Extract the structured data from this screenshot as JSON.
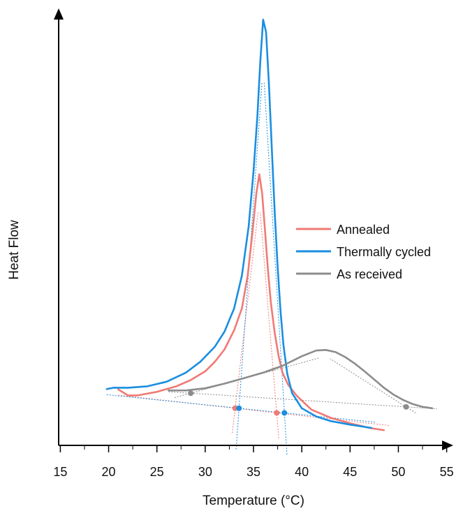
{
  "chart_data": {
    "type": "line",
    "xlabel": "Temperature (°C)",
    "ylabel": "Heat Flow",
    "xlim": [
      15,
      55
    ],
    "x_ticks": [
      15,
      20,
      25,
      30,
      35,
      40,
      45,
      50,
      55
    ],
    "y_units": "arbitrary heat flow (no tick labels shown)",
    "grid": false,
    "legend_position": "right-center",
    "series": [
      {
        "name": "Annealed",
        "color": "#f07a74",
        "x": [
          21.0,
          21.5,
          22.0,
          23.0,
          25.0,
          27.0,
          28.5,
          30.0,
          31.0,
          32.0,
          33.0,
          33.8,
          34.4,
          34.9,
          35.3,
          35.6,
          35.9,
          36.2,
          36.5,
          36.8,
          37.2,
          37.6,
          38.0,
          38.6,
          39.5,
          41.0,
          43.0,
          45.0,
          47.0,
          48.5
        ],
        "y": [
          0.44,
          0.33,
          0.22,
          0.22,
          0.35,
          0.55,
          0.78,
          1.1,
          1.45,
          1.9,
          2.6,
          3.4,
          4.6,
          6.2,
          7.6,
          8.3,
          7.6,
          6.2,
          4.8,
          3.6,
          2.5,
          1.65,
          1.05,
          0.6,
          0.2,
          -0.3,
          -0.6,
          -0.8,
          -0.97,
          -1.05
        ]
      },
      {
        "name": "Thermally cycled",
        "color": "#1a8ee0",
        "x": [
          19.8,
          20.5,
          22.0,
          24.0,
          26.0,
          28.0,
          29.5,
          31.0,
          32.0,
          33.0,
          33.8,
          34.5,
          35.0,
          35.4,
          35.7,
          36.0,
          36.3,
          36.6,
          36.9,
          37.2,
          37.5,
          37.8,
          38.1,
          38.5,
          39.0,
          40.0,
          41.5,
          43.0,
          45.0,
          47.2
        ],
        "y": [
          0.45,
          0.5,
          0.5,
          0.55,
          0.72,
          1.05,
          1.45,
          2.0,
          2.55,
          3.4,
          4.6,
          6.4,
          8.4,
          10.4,
          12.4,
          13.95,
          13.5,
          11.6,
          9.2,
          6.9,
          4.9,
          3.3,
          2.05,
          1.0,
          0.3,
          -0.25,
          -0.55,
          -0.72,
          -0.85,
          -0.97
        ]
      },
      {
        "name": "As received",
        "color": "#8c8c8c",
        "x": [
          26.2,
          28.0,
          30.0,
          32.0,
          34.0,
          36.0,
          38.0,
          40.0,
          41.5,
          42.5,
          43.5,
          44.5,
          45.5,
          46.5,
          47.5,
          48.5,
          49.5,
          50.5,
          51.5,
          52.5,
          53.5
        ],
        "y": [
          0.4,
          0.4,
          0.48,
          0.65,
          0.85,
          1.05,
          1.3,
          1.65,
          1.86,
          1.88,
          1.8,
          1.62,
          1.38,
          1.1,
          0.8,
          0.5,
          0.25,
          0.05,
          -0.1,
          -0.2,
          -0.25
        ]
      }
    ],
    "onset_markers": [
      {
        "series": "Annealed",
        "x": 33.1,
        "y": -0.25
      },
      {
        "series": "Annealed",
        "x": 37.4,
        "y": -0.42
      },
      {
        "series": "Thermally cycled",
        "x": 33.5,
        "y": -0.25
      },
      {
        "series": "Thermally cycled",
        "x": 38.2,
        "y": -0.42
      },
      {
        "series": "As received",
        "x": 28.5,
        "y": 0.3
      },
      {
        "series": "As received",
        "x": 50.8,
        "y": -0.2
      }
    ]
  }
}
